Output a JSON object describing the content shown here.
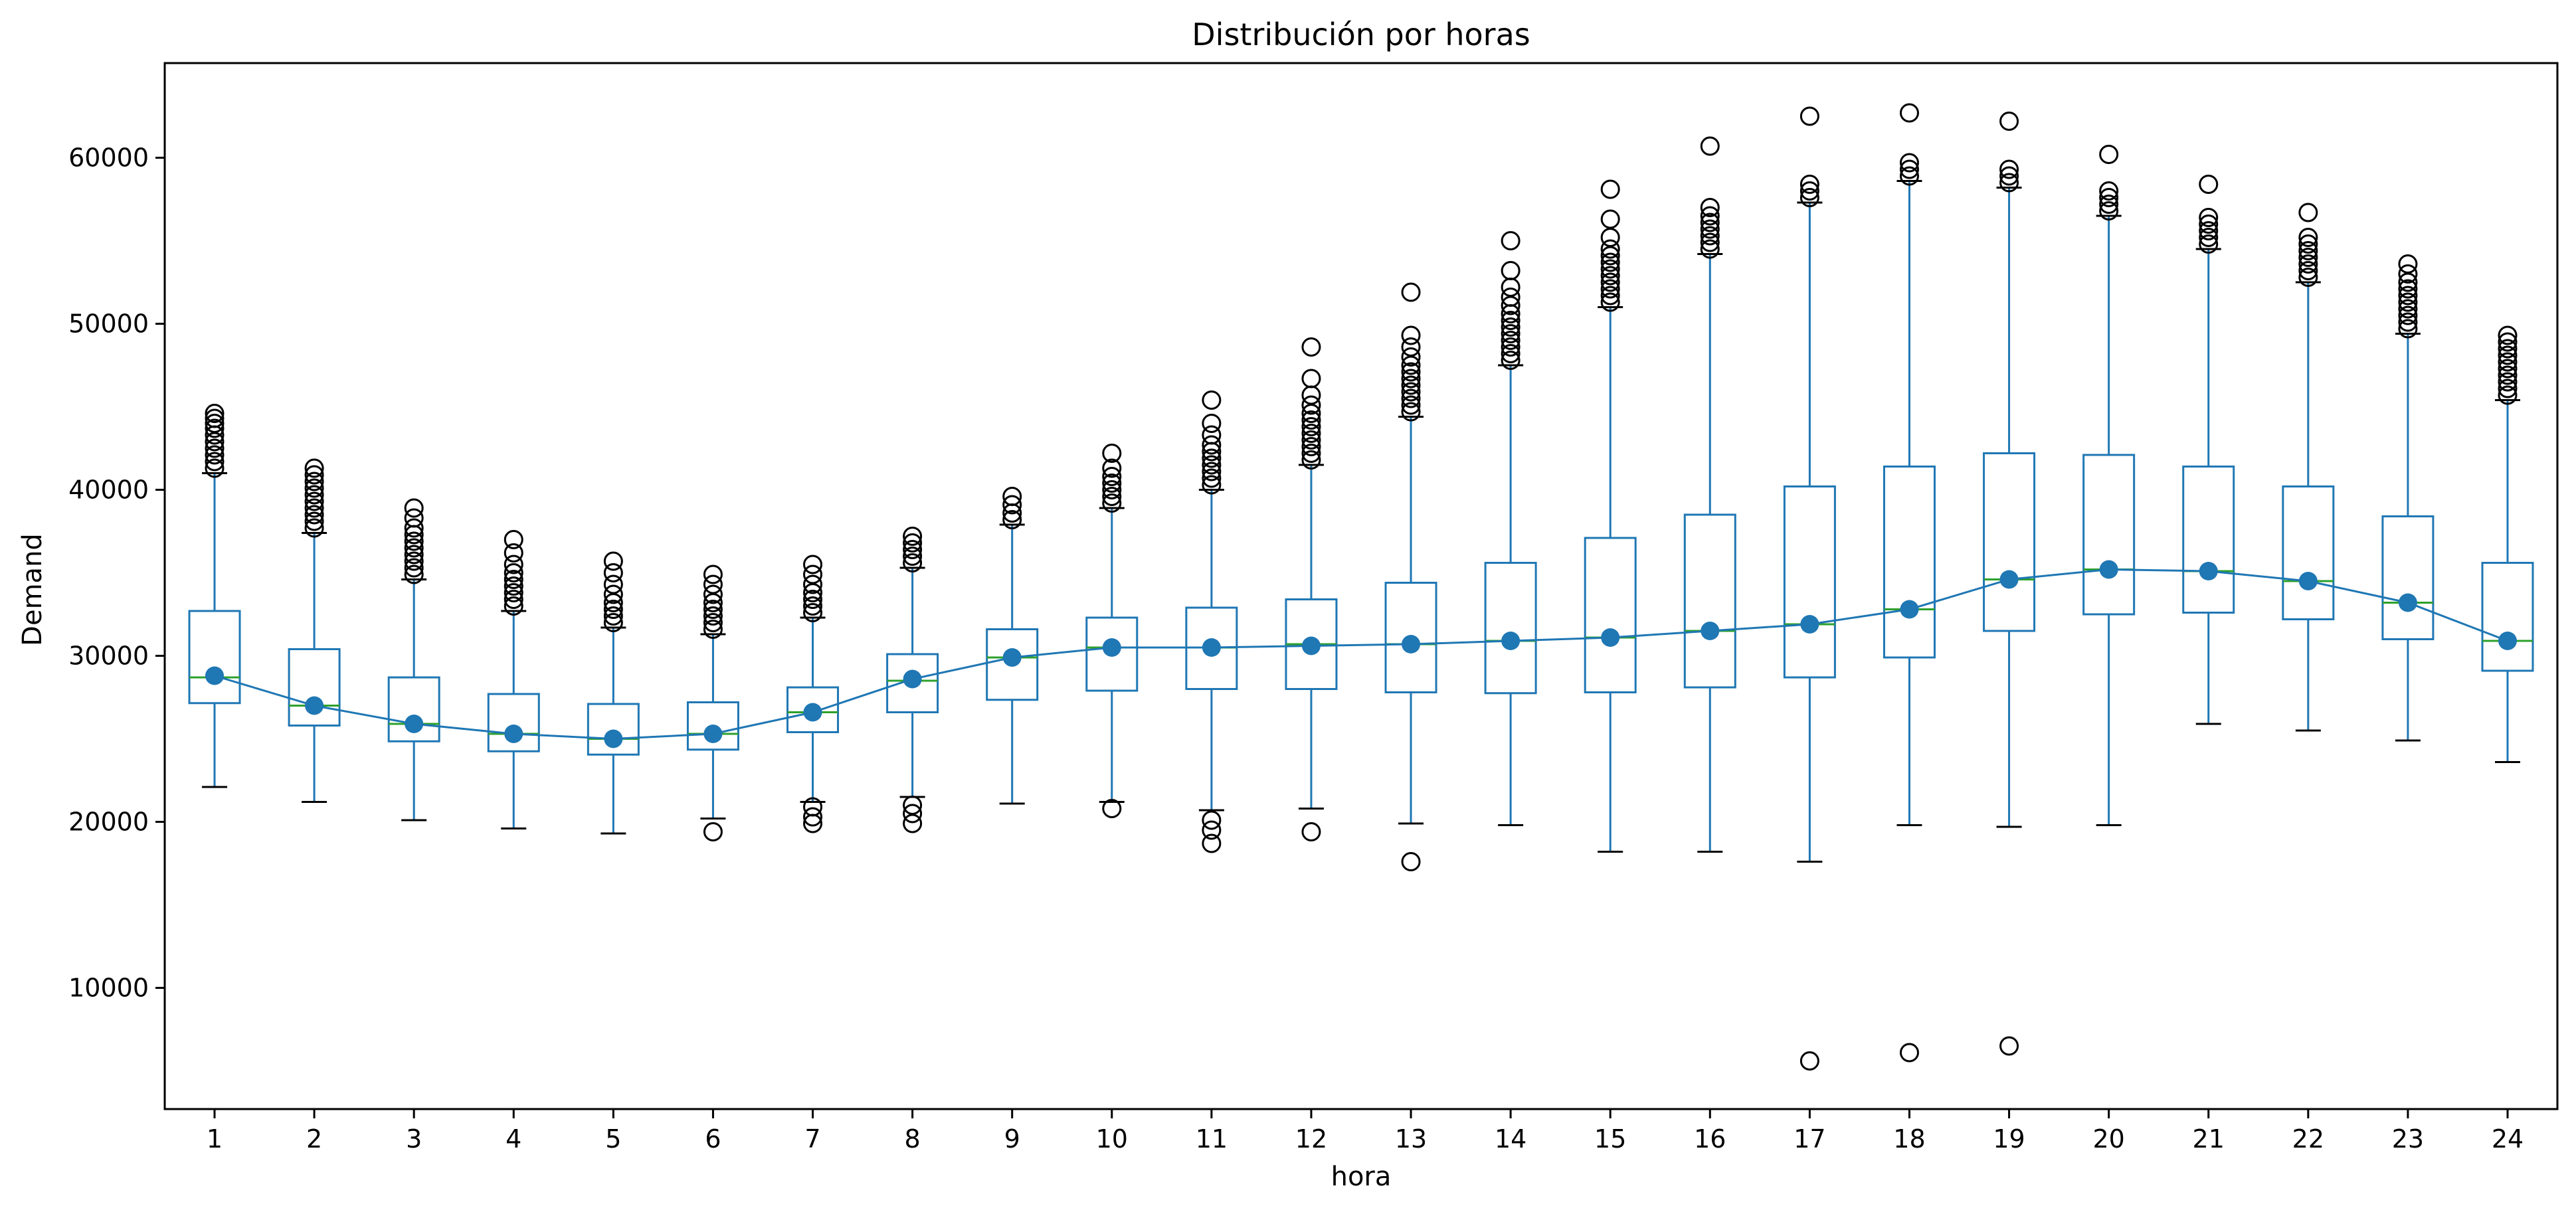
{
  "chart_data": {
    "type": "box",
    "title": "Distribución por horas",
    "xlabel": "hora",
    "ylabel": "Demand",
    "ylim": [
      2700,
      65700
    ],
    "yticks": [
      10000,
      20000,
      30000,
      40000,
      50000,
      60000
    ],
    "categories": [
      "1",
      "2",
      "3",
      "4",
      "5",
      "6",
      "7",
      "8",
      "9",
      "10",
      "11",
      "12",
      "13",
      "14",
      "15",
      "16",
      "17",
      "18",
      "19",
      "20",
      "21",
      "22",
      "23",
      "24"
    ],
    "grid": false,
    "colors": {
      "box": "#1f77b4",
      "median": "#2ca02c",
      "mean": "#1f77b4",
      "mean_line": "#1f77b4",
      "flier": "#000000",
      "cap": "#000000"
    },
    "boxes": [
      {
        "q1": 27150,
        "median": 28700,
        "q3": 32700,
        "whisker_low": 22100,
        "whisker_high": 41000,
        "fliers": [
          41300,
          41700,
          42100,
          42500,
          42900,
          43300,
          43700,
          44000,
          44300,
          44600
        ]
      },
      {
        "q1": 25800,
        "median": 27000,
        "q3": 30400,
        "whisker_low": 21200,
        "whisker_high": 37400,
        "fliers": [
          37700,
          38100,
          38500,
          38900,
          39300,
          39700,
          40100,
          40500,
          40900,
          41300
        ]
      },
      {
        "q1": 24850,
        "median": 25900,
        "q3": 28700,
        "whisker_low": 20100,
        "whisker_high": 34600,
        "fliers": [
          34900,
          35300,
          35700,
          36100,
          36500,
          36900,
          37300,
          37700,
          38300,
          38900
        ]
      },
      {
        "q1": 24250,
        "median": 25300,
        "q3": 27700,
        "whisker_low": 19600,
        "whisker_high": 32700,
        "fliers": [
          33000,
          33400,
          33800,
          34200,
          34600,
          35000,
          35500,
          36200,
          37000
        ]
      },
      {
        "q1": 24050,
        "median": 25000,
        "q3": 27100,
        "whisker_low": 19300,
        "whisker_high": 31700,
        "fliers": [
          32000,
          32400,
          32800,
          33200,
          33700,
          34300,
          35000,
          35700
        ]
      },
      {
        "q1": 24350,
        "median": 25300,
        "q3": 27200,
        "whisker_low": 20200,
        "whisker_high": 31300,
        "fliers": [
          19400,
          31600,
          32000,
          32400,
          32800,
          33200,
          33700,
          34300,
          34900
        ]
      },
      {
        "q1": 25400,
        "median": 26600,
        "q3": 28100,
        "whisker_low": 21200,
        "whisker_high": 32300,
        "fliers": [
          19900,
          20300,
          20900,
          32600,
          33000,
          33400,
          33800,
          34300,
          34900,
          35500
        ]
      },
      {
        "q1": 26600,
        "median": 28500,
        "q3": 30100,
        "whisker_low": 21500,
        "whisker_high": 35300,
        "fliers": [
          19900,
          20500,
          21000,
          35600,
          36000,
          36400,
          36800,
          37200
        ]
      },
      {
        "q1": 27350,
        "median": 29900,
        "q3": 31600,
        "whisker_low": 21100,
        "whisker_high": 37900,
        "fliers": [
          38200,
          38600,
          39100,
          39600
        ]
      },
      {
        "q1": 27900,
        "median": 30500,
        "q3": 32300,
        "whisker_low": 21200,
        "whisker_high": 38900,
        "fliers": [
          20800,
          39200,
          39600,
          40000,
          40400,
          40800,
          41300,
          42200
        ]
      },
      {
        "q1": 28000,
        "median": 30500,
        "q3": 32900,
        "whisker_low": 20700,
        "whisker_high": 40000,
        "fliers": [
          18700,
          19500,
          20100,
          40300,
          40700,
          41100,
          41500,
          41900,
          42300,
          42700,
          43300,
          44000,
          45400
        ]
      },
      {
        "q1": 28000,
        "median": 30700,
        "q3": 33400,
        "whisker_low": 20800,
        "whisker_high": 41500,
        "fliers": [
          19400,
          41800,
          42200,
          42600,
          43000,
          43400,
          43800,
          44200,
          44600,
          45100,
          45700,
          46700,
          48600
        ]
      },
      {
        "q1": 27800,
        "median": 30700,
        "q3": 34400,
        "whisker_low": 19900,
        "whisker_high": 44400,
        "fliers": [
          17600,
          44700,
          45100,
          45500,
          45900,
          46300,
          46700,
          47100,
          47500,
          48000,
          48600,
          49300,
          51900
        ]
      },
      {
        "q1": 27750,
        "median": 30900,
        "q3": 35600,
        "whisker_low": 19800,
        "whisker_high": 47500,
        "fliers": [
          47800,
          48200,
          48600,
          49000,
          49400,
          49800,
          50200,
          50600,
          51100,
          51600,
          52200,
          53200,
          55000
        ]
      },
      {
        "q1": 27800,
        "median": 31100,
        "q3": 37100,
        "whisker_low": 18200,
        "whisker_high": 51000,
        "fliers": [
          51300,
          51700,
          52100,
          52500,
          52900,
          53300,
          53700,
          54100,
          54500,
          55200,
          56300,
          58100
        ]
      },
      {
        "q1": 28100,
        "median": 31500,
        "q3": 38500,
        "whisker_low": 18200,
        "whisker_high": 54200,
        "fliers": [
          54500,
          54900,
          55300,
          55700,
          56100,
          56500,
          57000,
          60700
        ]
      },
      {
        "q1": 28700,
        "median": 31900,
        "q3": 40200,
        "whisker_low": 17600,
        "whisker_high": 57300,
        "fliers": [
          5600,
          57600,
          58000,
          58400,
          62500
        ]
      },
      {
        "q1": 29900,
        "median": 32800,
        "q3": 41400,
        "whisker_low": 19800,
        "whisker_high": 58600,
        "fliers": [
          6100,
          58900,
          59300,
          59700,
          62700
        ]
      },
      {
        "q1": 31500,
        "median": 34600,
        "q3": 42200,
        "whisker_low": 19700,
        "whisker_high": 58200,
        "fliers": [
          6500,
          58500,
          58900,
          59300,
          62200
        ]
      },
      {
        "q1": 32500,
        "median": 35200,
        "q3": 42100,
        "whisker_low": 19800,
        "whisker_high": 56500,
        "fliers": [
          56800,
          57200,
          57600,
          58000,
          60200
        ]
      },
      {
        "q1": 32600,
        "median": 35100,
        "q3": 41400,
        "whisker_low": 25900,
        "whisker_high": 54500,
        "fliers": [
          54800,
          55200,
          55600,
          56000,
          56400,
          58400
        ]
      },
      {
        "q1": 32200,
        "median": 34500,
        "q3": 40200,
        "whisker_low": 25500,
        "whisker_high": 52500,
        "fliers": [
          52800,
          53200,
          53600,
          54000,
          54400,
          54800,
          55200,
          56700
        ]
      },
      {
        "q1": 31000,
        "median": 33200,
        "q3": 38400,
        "whisker_low": 24900,
        "whisker_high": 49400,
        "fliers": [
          49700,
          50100,
          50500,
          50900,
          51300,
          51700,
          52100,
          52500,
          53000,
          53600
        ]
      },
      {
        "q1": 29100,
        "median": 30900,
        "q3": 35600,
        "whisker_low": 23600,
        "whisker_high": 45400,
        "fliers": [
          45700,
          46100,
          46500,
          46900,
          47300,
          47700,
          48100,
          48500,
          48900,
          49300
        ]
      }
    ],
    "means": [
      28800,
      27000,
      25900,
      25300,
      25000,
      25300,
      26600,
      28600,
      29900,
      30500,
      30500,
      30600,
      30700,
      30900,
      31100,
      31500,
      31900,
      32800,
      34600,
      35200,
      35100,
      34500,
      33200,
      30900
    ]
  }
}
